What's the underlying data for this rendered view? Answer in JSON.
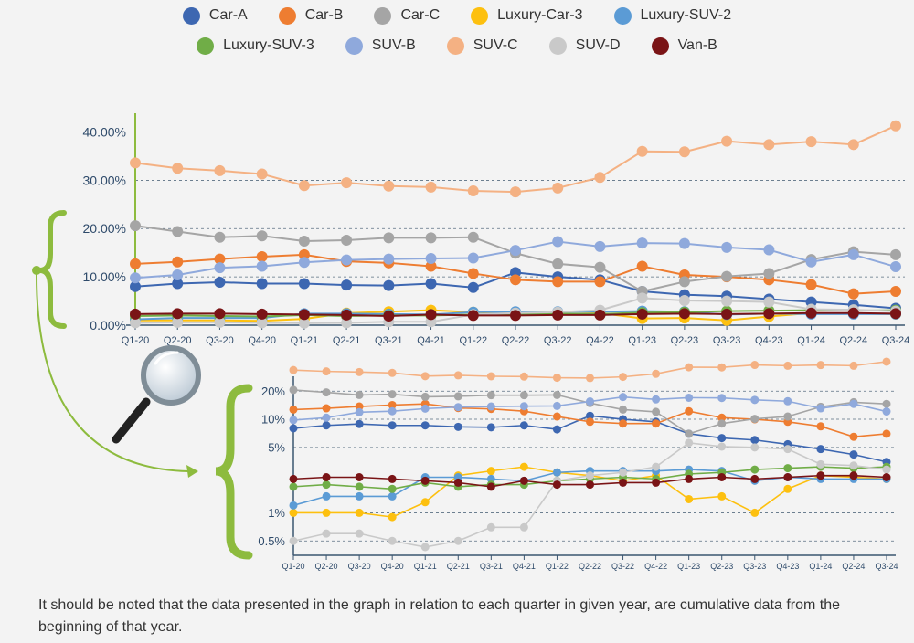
{
  "note": "It should be noted that the data presented in the graph in relation to each quarter in given year, are cumulative data from the beginning of that year.",
  "icons": {
    "magnifier": "magnifier-icon",
    "brace": "curly-brace-icon",
    "arrow": "curved-arrow-icon"
  },
  "accent_color": "#8dbb3e",
  "chart_data": [
    {
      "type": "line",
      "title": "",
      "xlabel": "",
      "ylabel": "",
      "y_scale": "linear",
      "ylim": [
        0,
        42
      ],
      "y_ticks": [
        0,
        10,
        20,
        30,
        40
      ],
      "y_tick_labels": [
        "0.00%",
        "10.00%",
        "20.00%",
        "30.00%",
        "40.00%"
      ],
      "grid": "horizontal-dashed",
      "legend": "top-center",
      "categories": [
        "Q1-20",
        "Q2-20",
        "Q3-20",
        "Q4-20",
        "Q1-21",
        "Q2-21",
        "Q3-21",
        "Q4-21",
        "Q1-22",
        "Q2-22",
        "Q3-22",
        "Q4-22",
        "Q1-23",
        "Q2-23",
        "Q3-23",
        "Q4-23",
        "Q1-24",
        "Q2-24",
        "Q3-24"
      ],
      "series": [
        {
          "name": "Car-A",
          "color": "#3d67b1",
          "values": [
            8.0,
            8.6,
            8.9,
            8.6,
            8.6,
            8.3,
            8.2,
            8.6,
            7.8,
            10.9,
            10.0,
            9.4,
            7.0,
            6.3,
            6.0,
            5.4,
            4.8,
            4.2,
            3.5
          ]
        },
        {
          "name": "Car-B",
          "color": "#ee7d31",
          "values": [
            12.7,
            13.1,
            13.7,
            14.2,
            14.6,
            13.2,
            12.9,
            12.2,
            10.7,
            9.4,
            9.0,
            9.0,
            12.2,
            10.4,
            10.0,
            9.4,
            8.4,
            6.5,
            7.0
          ]
        },
        {
          "name": "Car-C",
          "color": "#a5a5a5",
          "values": [
            20.6,
            19.4,
            18.2,
            18.5,
            17.4,
            17.6,
            18.1,
            18.1,
            18.2,
            14.9,
            12.7,
            12.0,
            7.0,
            9.0,
            10.1,
            10.7,
            13.6,
            15.2,
            14.6
          ]
        },
        {
          "name": "Luxury-Car-3",
          "color": "#fdc00f",
          "values": [
            1.0,
            1.0,
            1.0,
            0.9,
            1.3,
            2.5,
            2.8,
            3.1,
            2.7,
            2.5,
            2.2,
            2.5,
            1.4,
            1.5,
            1.0,
            1.8,
            2.5,
            2.4,
            2.3
          ]
        },
        {
          "name": "Luxury-SUV-2",
          "color": "#5b9bd5",
          "values": [
            1.2,
            1.5,
            1.5,
            1.5,
            2.4,
            2.4,
            2.3,
            2.2,
            2.7,
            2.8,
            2.8,
            2.8,
            2.9,
            2.8,
            2.2,
            2.4,
            2.3,
            2.3,
            2.3
          ]
        },
        {
          "name": "Luxury-SUV-3",
          "color": "#70ad47",
          "values": [
            1.9,
            2.0,
            1.9,
            1.8,
            2.1,
            1.9,
            2.0,
            2.0,
            2.2,
            2.3,
            2.4,
            2.3,
            2.6,
            2.7,
            2.9,
            3.0,
            3.1,
            3.0,
            3.1
          ]
        },
        {
          "name": "SUV-B",
          "color": "#8fa9dc",
          "values": [
            9.8,
            10.4,
            11.9,
            12.2,
            13.0,
            13.5,
            13.7,
            13.8,
            13.9,
            15.5,
            17.3,
            16.3,
            17.0,
            16.9,
            16.1,
            15.6,
            13.1,
            14.6,
            12.1
          ]
        },
        {
          "name": "SUV-C",
          "color": "#f4b183",
          "values": [
            33.6,
            32.5,
            32.0,
            31.3,
            28.9,
            29.5,
            28.8,
            28.6,
            27.8,
            27.6,
            28.4,
            30.6,
            36.0,
            35.9,
            38.1,
            37.4,
            38.0,
            37.4,
            41.3
          ]
        },
        {
          "name": "SUV-D",
          "color": "#c9c9c9",
          "values": [
            0.5,
            0.6,
            0.6,
            0.5,
            0.43,
            0.5,
            0.7,
            0.7,
            2.2,
            2.5,
            2.7,
            3.1,
            5.6,
            5.1,
            5.0,
            4.8,
            3.3,
            3.2,
            2.9
          ]
        },
        {
          "name": "Van-B",
          "color": "#7a1416",
          "values": [
            2.3,
            2.4,
            2.4,
            2.3,
            2.2,
            2.1,
            1.9,
            2.2,
            2.0,
            2.0,
            2.1,
            2.1,
            2.3,
            2.4,
            2.3,
            2.4,
            2.5,
            2.5,
            2.4
          ]
        }
      ]
    },
    {
      "type": "line",
      "title": "",
      "xlabel": "",
      "ylabel": "",
      "y_scale": "log",
      "ylim": [
        0.42,
        23
      ],
      "y_ticks": [
        0.5,
        1,
        5,
        10,
        20
      ],
      "y_tick_labels": [
        "0.5%",
        "1%",
        "5%",
        "10%",
        "20%"
      ],
      "grid": "horizontal-dashed",
      "legend": "shared",
      "same_series_as_chart": 0
    }
  ]
}
